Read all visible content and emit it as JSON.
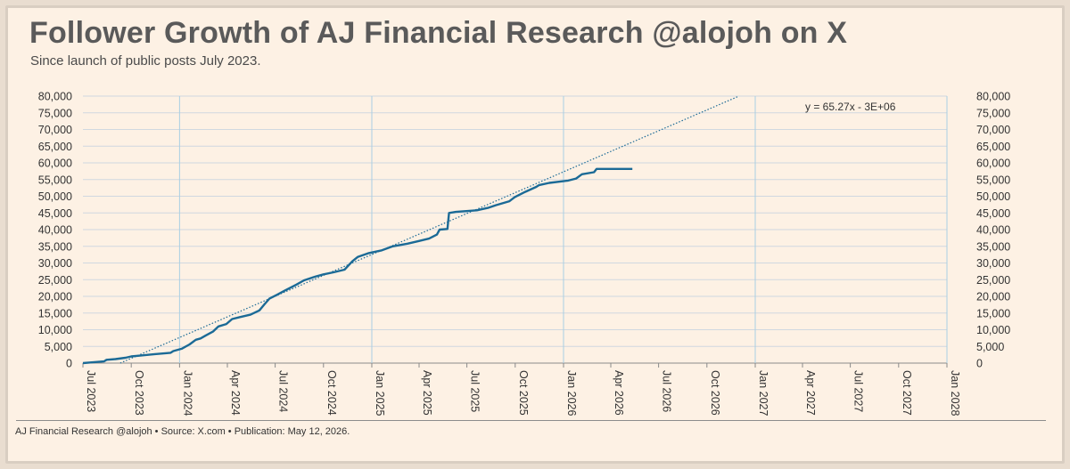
{
  "header": {
    "title": "Follower Growth of AJ Financial Research @alojoh on X",
    "subtitle": "Since launch of public posts July 2023."
  },
  "footer": {
    "text": "AJ Financial Research @alojoh • Source: X.com • Publication: May 12, 2026."
  },
  "colors": {
    "background": "#fdf1e4",
    "series": "#1b6a96",
    "trendline": "#1b6a96",
    "gridline": "#d0d8e0",
    "yearline": "#a9cfe3"
  },
  "chart_data": {
    "type": "line",
    "title": "Follower Growth of AJ Financial Research @alojoh on X",
    "subtitle": "Since launch of public posts July 2023.",
    "xlabel": "",
    "ylabel": "",
    "ylim": [
      0,
      80000
    ],
    "yticks": [
      0,
      5000,
      10000,
      15000,
      20000,
      25000,
      30000,
      35000,
      40000,
      45000,
      50000,
      55000,
      60000,
      65000,
      70000,
      75000,
      80000
    ],
    "ytick_labels": [
      "0",
      "5,000",
      "10,000",
      "15,000",
      "20,000",
      "25,000",
      "30,000",
      "35,000",
      "40,000",
      "45,000",
      "50,000",
      "55,000",
      "60,000",
      "65,000",
      "70,000",
      "75,000",
      "80,000"
    ],
    "y_axis_both_sides": true,
    "xlim": [
      "2023-07-01",
      "2028-01-01"
    ],
    "xticks": [
      "2023-07-01",
      "2023-10-01",
      "2024-01-01",
      "2024-04-01",
      "2024-07-01",
      "2024-10-01",
      "2025-01-01",
      "2025-04-01",
      "2025-07-01",
      "2025-10-01",
      "2026-01-01",
      "2026-04-01",
      "2026-07-01",
      "2026-10-01",
      "2027-01-01",
      "2027-04-01",
      "2027-07-01",
      "2027-10-01",
      "2028-01-01"
    ],
    "xtick_labels": [
      "Jul 2023",
      "Oct 2023",
      "Jan 2024",
      "Apr 2024",
      "Jul 2024",
      "Oct 2024",
      "Jan 2025",
      "Apr 2025",
      "Jul 2025",
      "Oct 2025",
      "Jan 2026",
      "Apr 2026",
      "Jul 2026",
      "Oct 2026",
      "Jan 2027",
      "Apr 2027",
      "Jul 2027",
      "Oct 2027",
      "Jan 2028"
    ],
    "grid": "horizontal",
    "year_lines": [
      "2024-01-01",
      "2025-01-01",
      "2026-01-01",
      "2027-01-01",
      "2028-01-01"
    ],
    "series": [
      {
        "points": [
          [
            "2023-07-01",
            0
          ],
          [
            "2023-07-15",
            200
          ],
          [
            "2023-08-10",
            500
          ],
          [
            "2023-08-15",
            1000
          ],
          [
            "2023-09-01",
            1200
          ],
          [
            "2023-09-20",
            1600
          ],
          [
            "2023-10-01",
            2000
          ],
          [
            "2023-10-20",
            2300
          ],
          [
            "2023-11-15",
            2700
          ],
          [
            "2023-12-15",
            3100
          ],
          [
            "2023-12-20",
            3600
          ],
          [
            "2024-01-05",
            4300
          ],
          [
            "2024-01-20",
            5600
          ],
          [
            "2024-02-01",
            7000
          ],
          [
            "2024-02-10",
            7400
          ],
          [
            "2024-02-20",
            8300
          ],
          [
            "2024-03-05",
            9500
          ],
          [
            "2024-03-15",
            11000
          ],
          [
            "2024-03-30",
            11700
          ],
          [
            "2024-04-10",
            13200
          ],
          [
            "2024-04-25",
            13800
          ],
          [
            "2024-05-15",
            14500
          ],
          [
            "2024-06-01",
            15800
          ],
          [
            "2024-06-10",
            17500
          ],
          [
            "2024-06-20",
            19300
          ],
          [
            "2024-07-05",
            20500
          ],
          [
            "2024-07-20",
            21800
          ],
          [
            "2024-08-10",
            23500
          ],
          [
            "2024-08-25",
            24800
          ],
          [
            "2024-09-15",
            25900
          ],
          [
            "2024-10-01",
            26600
          ],
          [
            "2024-10-20",
            27200
          ],
          [
            "2024-11-10",
            28000
          ],
          [
            "2024-11-25",
            30500
          ],
          [
            "2024-12-05",
            31800
          ],
          [
            "2024-12-25",
            32900
          ],
          [
            "2025-01-20",
            33800
          ],
          [
            "2025-02-10",
            35000
          ],
          [
            "2025-03-10",
            35800
          ],
          [
            "2025-03-30",
            36500
          ],
          [
            "2025-04-20",
            37300
          ],
          [
            "2025-05-05",
            38500
          ],
          [
            "2025-05-10",
            40000
          ],
          [
            "2025-05-25",
            40200
          ],
          [
            "2025-05-28",
            45000
          ],
          [
            "2025-06-10",
            45300
          ],
          [
            "2025-07-20",
            45800
          ],
          [
            "2025-08-10",
            46500
          ],
          [
            "2025-08-25",
            47300
          ],
          [
            "2025-09-20",
            48500
          ],
          [
            "2025-09-30",
            49700
          ],
          [
            "2025-10-20",
            51300
          ],
          [
            "2025-11-10",
            52800
          ],
          [
            "2025-11-15",
            53300
          ],
          [
            "2025-12-05",
            54000
          ],
          [
            "2026-01-10",
            54700
          ],
          [
            "2026-01-25",
            55300
          ],
          [
            "2026-02-05",
            56600
          ],
          [
            "2026-02-28",
            57200
          ],
          [
            "2026-03-05",
            58200
          ],
          [
            "2026-05-12",
            58200
          ]
        ]
      }
    ],
    "trendline": {
      "label": "y = 65.27x - 3E+06",
      "slope_per_day": 65.27,
      "style": "dotted",
      "start": [
        "2023-09-10",
        0
      ],
      "end": [
        "2026-12-01",
        80000
      ]
    }
  }
}
